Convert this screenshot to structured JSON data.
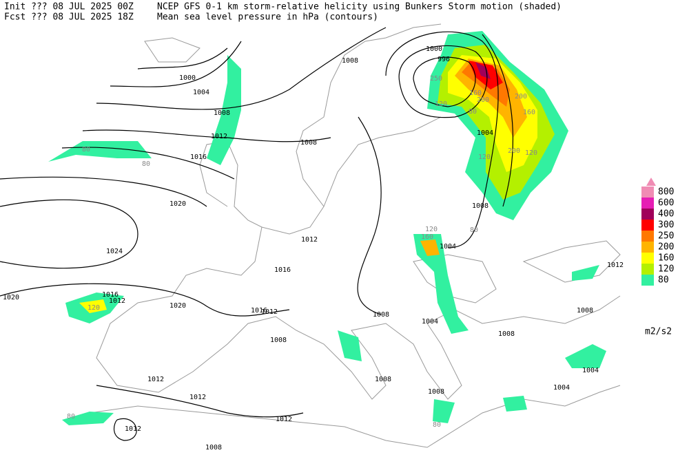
{
  "header": {
    "init": "Init  ??? 08 JUL 2025 00Z",
    "title": "NCEP GFS 0-1 km storm-relative helicity using Bunkers Storm motion (shaded)",
    "fcst": "Fcst ??? 08 JUL 2025 18Z",
    "subtitle": "Mean sea level pressure in hPa (contours)"
  },
  "legend": {
    "unit": "m2/s2",
    "items": [
      {
        "label": "800",
        "color": "#f08cb4"
      },
      {
        "label": "600",
        "color": "#e61eb4"
      },
      {
        "label": "400",
        "color": "#a0005a"
      },
      {
        "label": "300",
        "color": "#ff0000"
      },
      {
        "label": "250",
        "color": "#ff7800"
      },
      {
        "label": "200",
        "color": "#ffb400"
      },
      {
        "label": "160",
        "color": "#ffff00"
      },
      {
        "label": "120",
        "color": "#b4f000"
      },
      {
        "label": "80",
        "color": "#32f0a0"
      }
    ]
  },
  "isobar_labels": [
    "1000",
    "1004",
    "1008",
    "1012",
    "1016",
    "1020",
    "1024",
    "1020",
    "1016",
    "1012",
    "1020",
    "1016",
    "1012",
    "1008",
    "1012",
    "1012",
    "1012",
    "1012",
    "1008",
    "1008",
    "1012",
    "1016",
    "1008",
    "1000",
    "996",
    "1004",
    "1008",
    "1004",
    "1004",
    "1008",
    "1008",
    "1008",
    "1008",
    "1008",
    "1012",
    "1004",
    "1004"
  ],
  "helicity_labels": [
    "80",
    "80",
    "120",
    "160",
    "120",
    "120",
    "200",
    "120",
    "160",
    "200",
    "160",
    "120",
    "80",
    "250",
    "200",
    "80",
    "80",
    "80"
  ]
}
